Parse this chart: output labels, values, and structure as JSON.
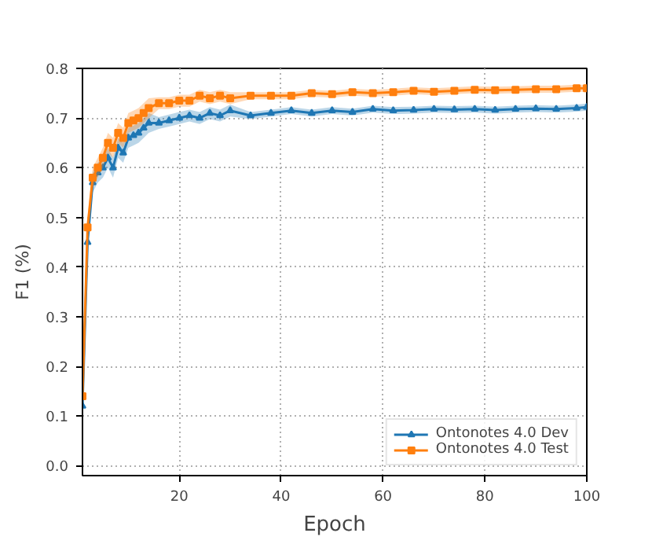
{
  "chart_data": {
    "type": "line",
    "xlabel": "Epoch",
    "ylabel": "F1 (%)",
    "xlim": [
      1,
      100
    ],
    "xticks": [
      20,
      40,
      60,
      80,
      100
    ],
    "ylim": [
      -0.02,
      0.8
    ],
    "yticks": [
      {
        "value": 0,
        "label": "0.0"
      },
      0.1,
      0.2,
      0.3,
      0.4,
      0.5,
      0.6,
      0.7,
      0.8
    ],
    "grid": true,
    "legend": "bottom right",
    "series": [
      {
        "name": "Ontonotes 4.0 Dev",
        "color": "#1f77b4",
        "marker": "triangle",
        "x": [
          1,
          2,
          3,
          4,
          5,
          6,
          7,
          8,
          9,
          10,
          11,
          12,
          13,
          14,
          16,
          18,
          20,
          22,
          24,
          26,
          28,
          30,
          34,
          38,
          42,
          46,
          50,
          54,
          58,
          62,
          66,
          70,
          74,
          78,
          82,
          86,
          90,
          94,
          98,
          100
        ],
        "values": [
          0.12,
          0.45,
          0.57,
          0.59,
          0.6,
          0.62,
          0.6,
          0.64,
          0.63,
          0.66,
          0.665,
          0.67,
          0.68,
          0.69,
          0.69,
          0.695,
          0.7,
          0.705,
          0.7,
          0.71,
          0.705,
          0.715,
          0.705,
          0.71,
          0.715,
          0.71,
          0.715,
          0.712,
          0.718,
          0.715,
          0.716,
          0.718,
          0.717,
          0.718,
          0.716,
          0.718,
          0.719,
          0.718,
          0.72,
          0.722
        ],
        "lower": [
          0.1,
          0.43,
          0.55,
          0.57,
          0.58,
          0.6,
          0.58,
          0.62,
          0.61,
          0.64,
          0.645,
          0.65,
          0.66,
          0.67,
          0.678,
          0.683,
          0.688,
          0.693,
          0.688,
          0.698,
          0.693,
          0.703,
          0.698,
          0.703,
          0.708,
          0.703,
          0.708,
          0.705,
          0.711,
          0.708,
          0.709,
          0.711,
          0.71,
          0.711,
          0.709,
          0.711,
          0.712,
          0.711,
          0.713,
          0.715
        ],
        "upper": [
          0.14,
          0.47,
          0.59,
          0.61,
          0.62,
          0.64,
          0.62,
          0.66,
          0.65,
          0.68,
          0.685,
          0.69,
          0.7,
          0.71,
          0.702,
          0.707,
          0.712,
          0.717,
          0.712,
          0.722,
          0.717,
          0.727,
          0.712,
          0.717,
          0.722,
          0.717,
          0.722,
          0.719,
          0.725,
          0.722,
          0.723,
          0.725,
          0.724,
          0.725,
          0.723,
          0.725,
          0.726,
          0.725,
          0.727,
          0.729
        ]
      },
      {
        "name": "Ontonotes 4.0 Test",
        "color": "#ff7f0e",
        "marker": "square",
        "x": [
          1,
          2,
          3,
          4,
          5,
          6,
          7,
          8,
          9,
          10,
          11,
          12,
          13,
          14,
          16,
          18,
          20,
          22,
          24,
          26,
          28,
          30,
          34,
          38,
          42,
          46,
          50,
          54,
          58,
          62,
          66,
          70,
          74,
          78,
          82,
          86,
          90,
          94,
          98,
          100
        ],
        "values": [
          0.14,
          0.48,
          0.58,
          0.6,
          0.62,
          0.65,
          0.64,
          0.67,
          0.66,
          0.69,
          0.695,
          0.7,
          0.71,
          0.72,
          0.73,
          0.73,
          0.735,
          0.735,
          0.745,
          0.74,
          0.745,
          0.74,
          0.745,
          0.745,
          0.745,
          0.75,
          0.748,
          0.752,
          0.75,
          0.752,
          0.755,
          0.753,
          0.755,
          0.757,
          0.756,
          0.757,
          0.758,
          0.758,
          0.76,
          0.76
        ],
        "lower": [
          0.12,
          0.46,
          0.56,
          0.58,
          0.6,
          0.63,
          0.62,
          0.65,
          0.64,
          0.67,
          0.675,
          0.68,
          0.69,
          0.7,
          0.718,
          0.718,
          0.723,
          0.723,
          0.733,
          0.728,
          0.733,
          0.728,
          0.738,
          0.738,
          0.738,
          0.743,
          0.741,
          0.745,
          0.743,
          0.745,
          0.748,
          0.746,
          0.748,
          0.75,
          0.749,
          0.75,
          0.751,
          0.751,
          0.753,
          0.753
        ],
        "upper": [
          0.16,
          0.5,
          0.6,
          0.62,
          0.64,
          0.67,
          0.66,
          0.69,
          0.68,
          0.71,
          0.715,
          0.72,
          0.73,
          0.74,
          0.742,
          0.742,
          0.747,
          0.747,
          0.757,
          0.752,
          0.757,
          0.752,
          0.752,
          0.752,
          0.752,
          0.757,
          0.755,
          0.759,
          0.757,
          0.759,
          0.762,
          0.76,
          0.762,
          0.764,
          0.763,
          0.764,
          0.765,
          0.765,
          0.767,
          0.767
        ]
      }
    ]
  }
}
